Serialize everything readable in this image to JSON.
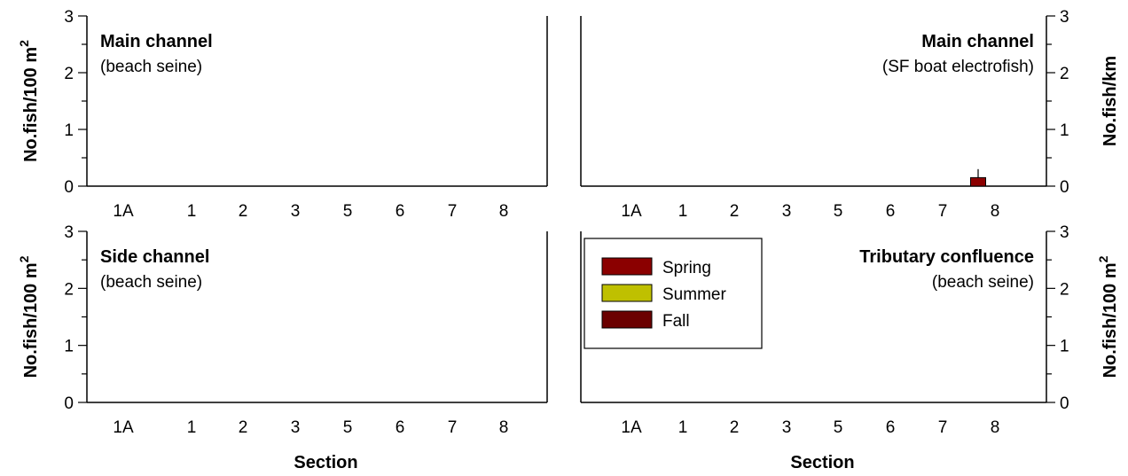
{
  "colors": {
    "spring": "#8b0000",
    "summer": "#bfc000",
    "fall": "#6b0000"
  },
  "legend": {
    "panel": 3,
    "items": [
      {
        "key": "spring",
        "label": "Spring"
      },
      {
        "key": "summer",
        "label": "Summer"
      },
      {
        "key": "fall",
        "label": "Fall"
      }
    ]
  },
  "chart_data": [
    {
      "type": "bar",
      "title": "Main channel",
      "subtitle": "(beach seine)",
      "title_align": "left",
      "ylabel": "No.fish/100 m",
      "ylabel_sup": "2",
      "yaxis_side": "left",
      "xlabel": "",
      "categories": [
        "1A",
        "1",
        "2",
        "3",
        "5",
        "6",
        "7",
        "8"
      ],
      "ylim": [
        0,
        3
      ],
      "yticks": [
        0,
        1,
        2,
        3
      ],
      "series": [
        {
          "key": "spring",
          "values": [
            0,
            0,
            0,
            0,
            0,
            0,
            0,
            0
          ]
        },
        {
          "key": "summer",
          "values": [
            0,
            0,
            0,
            0,
            0,
            0,
            0,
            0
          ]
        },
        {
          "key": "fall",
          "values": [
            0,
            0,
            0,
            0,
            0,
            0,
            0,
            0
          ]
        }
      ]
    },
    {
      "type": "bar",
      "title": "Main channel",
      "subtitle": "(SF boat electrofish)",
      "title_align": "right",
      "ylabel": "No.fish/km",
      "ylabel_sup": "",
      "yaxis_side": "right",
      "xlabel": "",
      "categories": [
        "1A",
        "1",
        "2",
        "3",
        "5",
        "6",
        "7",
        "8"
      ],
      "ylim": [
        0,
        3
      ],
      "yticks": [
        0,
        1,
        2,
        3
      ],
      "series": [
        {
          "key": "spring",
          "values": [
            0,
            0,
            0,
            0,
            0,
            0,
            0,
            0.15
          ],
          "errors": [
            0,
            0,
            0,
            0,
            0,
            0,
            0,
            0.15
          ]
        },
        {
          "key": "summer",
          "values": [
            0,
            0,
            0,
            0,
            0,
            0,
            0,
            0
          ]
        },
        {
          "key": "fall",
          "values": [
            0,
            0,
            0,
            0,
            0,
            0,
            0,
            0
          ]
        }
      ]
    },
    {
      "type": "bar",
      "title": "Side channel",
      "subtitle": "(beach seine)",
      "title_align": "left",
      "ylabel": "No.fish/100 m",
      "ylabel_sup": "2",
      "yaxis_side": "left",
      "xlabel": "Section",
      "categories": [
        "1A",
        "1",
        "2",
        "3",
        "5",
        "6",
        "7",
        "8"
      ],
      "ylim": [
        0,
        3
      ],
      "yticks": [
        0,
        1,
        2,
        3
      ],
      "series": [
        {
          "key": "spring",
          "values": [
            0,
            0,
            0,
            0,
            0,
            0,
            0,
            0
          ]
        },
        {
          "key": "summer",
          "values": [
            0,
            0,
            0,
            0,
            0,
            0,
            0,
            0
          ]
        },
        {
          "key": "fall",
          "values": [
            0,
            0,
            0,
            0,
            0,
            0,
            0,
            0
          ]
        }
      ]
    },
    {
      "type": "bar",
      "title": "Tributary confluence",
      "subtitle": "(beach seine)",
      "title_align": "right",
      "ylabel": "No.fish/100 m",
      "ylabel_sup": "2",
      "yaxis_side": "right",
      "xlabel": "Section",
      "categories": [
        "1A",
        "1",
        "2",
        "3",
        "5",
        "6",
        "7",
        "8"
      ],
      "ylim": [
        0,
        3
      ],
      "yticks": [
        0,
        1,
        2,
        3
      ],
      "series": [
        {
          "key": "spring",
          "values": [
            0,
            0,
            0,
            0,
            0,
            0,
            0,
            0
          ]
        },
        {
          "key": "summer",
          "values": [
            0,
            0,
            0,
            0,
            0,
            0,
            0,
            0
          ]
        },
        {
          "key": "fall",
          "values": [
            0,
            0,
            0,
            0,
            0,
            0,
            0,
            0
          ]
        }
      ]
    }
  ]
}
